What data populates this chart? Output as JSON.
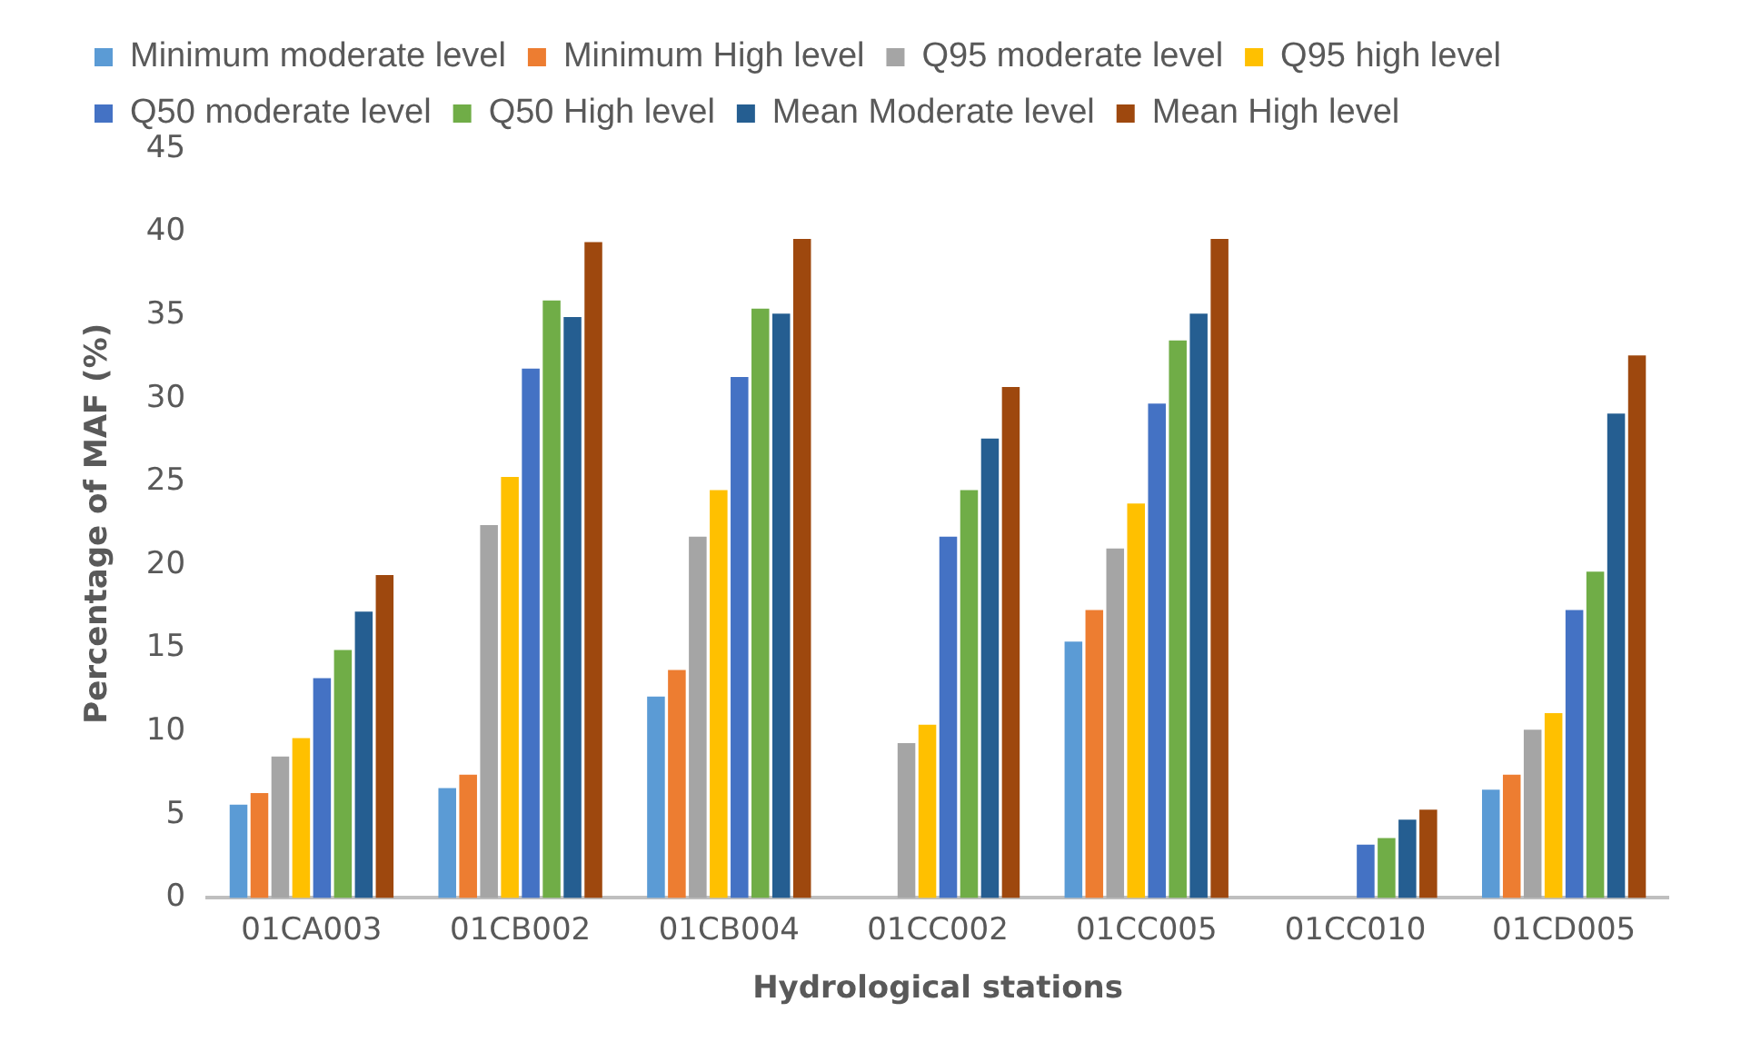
{
  "chart_data": {
    "type": "bar",
    "xlabel": "Hydrological stations",
    "ylabel": "Percentage of MAF (%)",
    "categories": [
      "01CA003",
      "01CB002",
      "01CB004",
      "01CC002",
      "01CC005",
      "01CC010",
      "01CD005"
    ],
    "series": [
      {
        "name": "Minimum moderate level",
        "color": "#5b9bd5",
        "values": [
          5.6,
          6.6,
          12.1,
          0,
          15.4,
          0,
          6.5
        ]
      },
      {
        "name": "Minimum High level",
        "color": "#ed7d31",
        "values": [
          6.3,
          7.4,
          13.7,
          0,
          17.3,
          0,
          7.4
        ]
      },
      {
        "name": "Q95 moderate level",
        "color": "#a5a5a5",
        "values": [
          8.5,
          22.4,
          21.7,
          9.3,
          21.0,
          0,
          10.1
        ]
      },
      {
        "name": "Q95 high level",
        "color": "#ffc000",
        "values": [
          9.6,
          25.3,
          24.5,
          10.4,
          23.7,
          0,
          11.1
        ]
      },
      {
        "name": "Q50 moderate level",
        "color": "#4472c4",
        "values": [
          13.2,
          31.8,
          31.3,
          21.7,
          29.7,
          3.2,
          17.3
        ]
      },
      {
        "name": "Q50 High level",
        "color": "#70ad47",
        "values": [
          14.9,
          35.9,
          35.4,
          24.5,
          33.5,
          3.6,
          19.6
        ]
      },
      {
        "name": "Mean Moderate level",
        "color": "#255e91",
        "values": [
          17.2,
          34.9,
          35.1,
          27.6,
          35.1,
          4.7,
          29.1
        ]
      },
      {
        "name": "Mean High level",
        "color": "#9e480e",
        "values": [
          19.4,
          39.4,
          39.6,
          30.7,
          39.6,
          5.3,
          32.6
        ]
      }
    ],
    "ylim": [
      0,
      45
    ],
    "yticks": [
      0,
      5,
      10,
      15,
      20,
      25,
      30,
      35,
      40,
      45
    ],
    "grid": false,
    "legend": "top"
  }
}
